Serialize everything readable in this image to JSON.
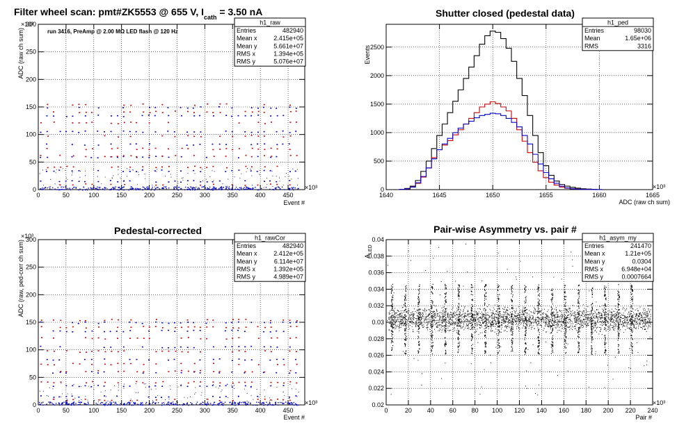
{
  "chart_data": [
    {
      "id": "raw",
      "type": "scatter",
      "title_parts": {
        "main": "Filter wheel scan: pmt#ZK5553 @   655 V, I",
        "sub": "cath",
        "tail": " = 3.50 nA"
      },
      "annotation": "run 3416, PreAmp @ 2.00 MΩ  LED flash @  120 Hz",
      "xlabel": "Event #",
      "ylabel": "ADC (raw ch sum)",
      "x_exponent": "×10³",
      "y_exponent": "×10³",
      "xlim": [
        0,
        480
      ],
      "ylim": [
        0,
        300
      ],
      "xticks": [
        "0",
        "50",
        "100",
        "150",
        "200",
        "250",
        "300",
        "350",
        "400",
        "450"
      ],
      "yticks": [
        "0",
        "50",
        "100",
        "150",
        "200",
        "250",
        "300"
      ],
      "grid": true,
      "series_colors": [
        "#0000cc",
        "#cc0000"
      ],
      "levels_blue": [
        2,
        16,
        35,
        60,
        83,
        106,
        135,
        150
      ],
      "levels_red": [
        10,
        42,
        62,
        75,
        98,
        122,
        142,
        155
      ],
      "stats": {
        "name": "h1_raw",
        "rows": [
          [
            "Entries",
            "482940"
          ],
          [
            "Mean x",
            "2.415e+05"
          ],
          [
            "Mean y",
            "5.661e+07"
          ],
          [
            "RMS x",
            "1.394e+05"
          ],
          [
            "RMS y",
            "5.076e+07"
          ]
        ]
      }
    },
    {
      "id": "ped",
      "type": "line",
      "title_parts": {
        "main": "Shutter closed (pedestal data)",
        "sub": "",
        "tail": ""
      },
      "xlabel": "ADC (raw ch sum)",
      "ylabel": "Events",
      "x_exponent": "×10³",
      "xlim": [
        1640,
        1665
      ],
      "ylim": [
        0,
        2900
      ],
      "xticks": [
        "1640",
        "1645",
        "1650",
        "1655",
        "1660",
        "1665"
      ],
      "yticks": [
        "0",
        "500",
        "1000",
        "1500",
        "2000",
        "2500"
      ],
      "grid": true,
      "x": [
        1641.5,
        1642,
        1642.5,
        1643,
        1643.5,
        1644,
        1644.5,
        1645,
        1645.5,
        1646,
        1646.5,
        1647,
        1647.5,
        1648,
        1648.5,
        1649,
        1649.5,
        1650,
        1650.5,
        1651,
        1651.5,
        1652,
        1652.5,
        1653,
        1653.5,
        1654,
        1654.5,
        1655,
        1655.5,
        1656,
        1656.5,
        1657,
        1657.5,
        1658,
        1658.5,
        1659,
        1659.5,
        1660
      ],
      "series": [
        {
          "color": "#000000",
          "values": [
            5,
            20,
            60,
            160,
            320,
            500,
            720,
            950,
            1150,
            1350,
            1550,
            1750,
            1950,
            2150,
            2350,
            2550,
            2700,
            2780,
            2760,
            2650,
            2480,
            2250,
            1950,
            1650,
            1300,
            950,
            650,
            420,
            250,
            150,
            90,
            60,
            40,
            25,
            15,
            10,
            5,
            2
          ]
        },
        {
          "color": "#cc0000",
          "values": [
            5,
            15,
            45,
            110,
            220,
            380,
            560,
            700,
            780,
            860,
            960,
            1050,
            1150,
            1250,
            1350,
            1450,
            1500,
            1540,
            1510,
            1450,
            1380,
            1250,
            1050,
            850,
            650,
            480,
            330,
            210,
            130,
            80,
            45,
            25,
            15,
            8,
            5,
            3,
            1,
            0
          ]
        },
        {
          "color": "#0000cc",
          "values": [
            5,
            15,
            45,
            120,
            230,
            380,
            540,
            700,
            800,
            900,
            1000,
            1080,
            1150,
            1200,
            1260,
            1300,
            1320,
            1340,
            1330,
            1300,
            1250,
            1180,
            1100,
            950,
            800,
            620,
            450,
            300,
            190,
            110,
            60,
            30,
            15,
            8,
            4,
            2,
            1,
            0
          ]
        }
      ],
      "stats": {
        "name": "h1_ped",
        "rows": [
          [
            "Entries",
            "98030"
          ],
          [
            "Mean",
            "1.65e+06"
          ],
          [
            "RMS",
            "3316"
          ]
        ]
      }
    },
    {
      "id": "rawCor",
      "type": "scatter",
      "title_parts": {
        "main": "Pedestal-corrected",
        "sub": "",
        "tail": ""
      },
      "xlabel": "Event #",
      "ylabel": "ADC (raw, ped-corr ch sum)",
      "x_exponent": "×10³",
      "y_exponent": "×10³",
      "xlim": [
        0,
        480
      ],
      "ylim": [
        0,
        300
      ],
      "xticks": [
        "0",
        "50",
        "100",
        "150",
        "200",
        "250",
        "300",
        "350",
        "400",
        "450"
      ],
      "yticks": [
        "0",
        "50",
        "100",
        "150",
        "200",
        "250",
        "300"
      ],
      "grid": true,
      "series_colors": [
        "#0000cc",
        "#cc0000"
      ],
      "levels_blue": [
        2,
        16,
        35,
        60,
        83,
        106,
        135,
        150
      ],
      "levels_red": [
        10,
        42,
        62,
        75,
        98,
        122,
        142,
        155
      ],
      "stats": {
        "name": "h1_rawCor",
        "rows": [
          [
            "Entries",
            "482940"
          ],
          [
            "Mean x",
            "2.412e+05"
          ],
          [
            "Mean y",
            "6.114e+07"
          ],
          [
            "RMS x",
            "1.392e+05"
          ],
          [
            "RMS y",
            "4.989e+07"
          ]
        ]
      }
    },
    {
      "id": "asym",
      "type": "scatter",
      "title_parts": {
        "main": "Pair-wise Asymmetry vs. pair #",
        "sub": "",
        "tail": ""
      },
      "xlabel": "Pair #",
      "ylabel": "A",
      "ylabel_sub": "LED",
      "x_exponent": "×10³",
      "xlim": [
        0,
        240
      ],
      "ylim": [
        0.02,
        0.04
      ],
      "xticks": [
        "0",
        "20",
        "40",
        "60",
        "80",
        "100",
        "120",
        "140",
        "160",
        "180",
        "200",
        "220",
        "240"
      ],
      "yticks": [
        "0.02",
        "0.022",
        "0.024",
        "0.026",
        "0.028",
        "0.03",
        "0.032",
        "0.034",
        "0.036",
        "0.038",
        "0.04"
      ],
      "grid": true,
      "band_center": 0.0304,
      "band_halfwidth": 0.0012,
      "spike_positions": [
        5,
        17,
        29,
        41,
        53,
        65,
        77,
        89,
        101,
        113,
        125,
        137,
        149,
        161,
        173,
        185,
        197,
        209,
        221
      ],
      "stats": {
        "name": "h1_asym_my",
        "rows": [
          [
            "Entries",
            "241470"
          ],
          [
            "Mean x",
            "1.21e+05"
          ],
          [
            "Mean y",
            "0.0304"
          ],
          [
            "RMS x",
            "6.948e+04"
          ],
          [
            "RMS y",
            "0.0007664"
          ]
        ]
      }
    }
  ]
}
